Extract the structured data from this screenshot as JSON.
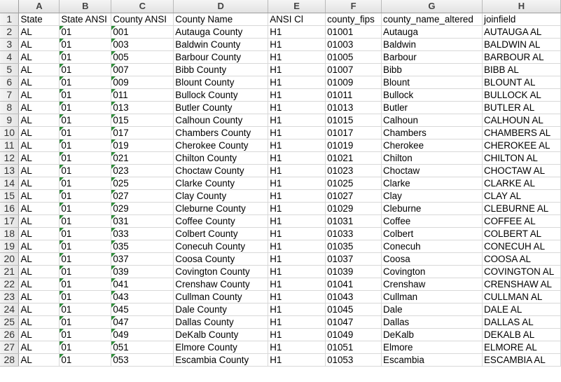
{
  "columns": [
    "A",
    "B",
    "C",
    "D",
    "E",
    "F",
    "G",
    "H"
  ],
  "header": [
    "State",
    "State ANSI",
    "County ANSI",
    "County Name",
    "ANSI Cl",
    "county_fips",
    "county_name_altered",
    "joinfield"
  ],
  "rows": [
    [
      "AL",
      "01",
      "001",
      "Autauga County",
      "H1",
      "01001",
      "Autauga",
      "AUTAUGA  AL"
    ],
    [
      "AL",
      "01",
      "003",
      "Baldwin County",
      "H1",
      "01003",
      "Baldwin",
      "BALDWIN  AL"
    ],
    [
      "AL",
      "01",
      "005",
      "Barbour County",
      "H1",
      "01005",
      "Barbour",
      "BARBOUR  AL"
    ],
    [
      "AL",
      "01",
      "007",
      "Bibb County",
      "H1",
      "01007",
      "Bibb",
      "BIBB  AL"
    ],
    [
      "AL",
      "01",
      "009",
      "Blount County",
      "H1",
      "01009",
      "Blount",
      "BLOUNT  AL"
    ],
    [
      "AL",
      "01",
      "011",
      "Bullock County",
      "H1",
      "01011",
      "Bullock",
      "BULLOCK  AL"
    ],
    [
      "AL",
      "01",
      "013",
      "Butler County",
      "H1",
      "01013",
      "Butler",
      "BUTLER  AL"
    ],
    [
      "AL",
      "01",
      "015",
      "Calhoun County",
      "H1",
      "01015",
      "Calhoun",
      "CALHOUN  AL"
    ],
    [
      "AL",
      "01",
      "017",
      "Chambers County",
      "H1",
      "01017",
      "Chambers",
      "CHAMBERS  AL"
    ],
    [
      "AL",
      "01",
      "019",
      "Cherokee County",
      "H1",
      "01019",
      "Cherokee",
      "CHEROKEE  AL"
    ],
    [
      "AL",
      "01",
      "021",
      "Chilton County",
      "H1",
      "01021",
      "Chilton",
      "CHILTON  AL"
    ],
    [
      "AL",
      "01",
      "023",
      "Choctaw County",
      "H1",
      "01023",
      "Choctaw",
      "CHOCTAW  AL"
    ],
    [
      "AL",
      "01",
      "025",
      "Clarke County",
      "H1",
      "01025",
      "Clarke",
      "CLARKE  AL"
    ],
    [
      "AL",
      "01",
      "027",
      "Clay County",
      "H1",
      "01027",
      "Clay",
      "CLAY  AL"
    ],
    [
      "AL",
      "01",
      "029",
      "Cleburne County",
      "H1",
      "01029",
      "Cleburne",
      "CLEBURNE  AL"
    ],
    [
      "AL",
      "01",
      "031",
      "Coffee County",
      "H1",
      "01031",
      "Coffee",
      "COFFEE  AL"
    ],
    [
      "AL",
      "01",
      "033",
      "Colbert County",
      "H1",
      "01033",
      "Colbert",
      "COLBERT  AL"
    ],
    [
      "AL",
      "01",
      "035",
      "Conecuh County",
      "H1",
      "01035",
      "Conecuh",
      "CONECUH  AL"
    ],
    [
      "AL",
      "01",
      "037",
      "Coosa County",
      "H1",
      "01037",
      "Coosa",
      "COOSA  AL"
    ],
    [
      "AL",
      "01",
      "039",
      "Covington County",
      "H1",
      "01039",
      "Covington",
      "COVINGTON  AL"
    ],
    [
      "AL",
      "01",
      "041",
      "Crenshaw County",
      "H1",
      "01041",
      "Crenshaw",
      "CRENSHAW  AL"
    ],
    [
      "AL",
      "01",
      "043",
      "Cullman County",
      "H1",
      "01043",
      "Cullman",
      "CULLMAN  AL"
    ],
    [
      "AL",
      "01",
      "045",
      "Dale County",
      "H1",
      "01045",
      "Dale",
      "DALE  AL"
    ],
    [
      "AL",
      "01",
      "047",
      "Dallas County",
      "H1",
      "01047",
      "Dallas",
      "DALLAS  AL"
    ],
    [
      "AL",
      "01",
      "049",
      "DeKalb County",
      "H1",
      "01049",
      "DeKalb",
      "DEKALB  AL"
    ],
    [
      "AL",
      "01",
      "051",
      "Elmore County",
      "H1",
      "01051",
      "Elmore",
      "ELMORE  AL"
    ],
    [
      "AL",
      "01",
      "053",
      "Escambia County",
      "H1",
      "01053",
      "Escambia",
      "ESCAMBIA  AL"
    ]
  ],
  "row_numbers": [
    "1",
    "2",
    "3",
    "4",
    "5",
    "6",
    "7",
    "8",
    "9",
    "10",
    "11",
    "12",
    "13",
    "14",
    "15",
    "16",
    "17",
    "18",
    "19",
    "20",
    "21",
    "22",
    "23",
    "24",
    "25",
    "26",
    "27",
    "28"
  ],
  "colors": {
    "error_indicator": "#2f8c3a",
    "gridline": "#d8d8d8",
    "header_bg": "#e8e8e8"
  }
}
